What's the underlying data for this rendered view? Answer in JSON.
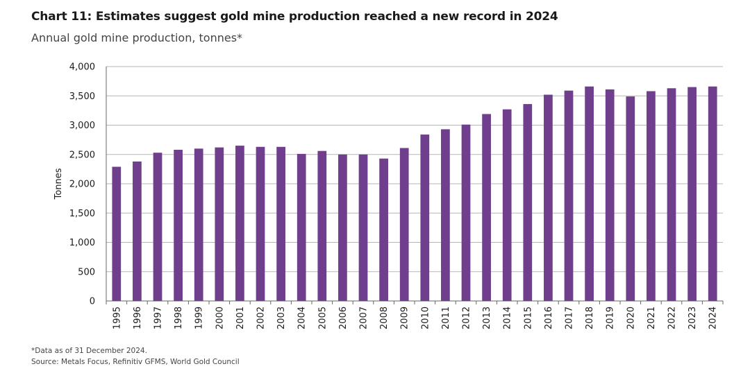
{
  "header": {
    "title": "Chart 11: Estimates suggest gold mine production reached a new record in 2024",
    "subtitle": "Annual gold mine production, tonnes*"
  },
  "footer": {
    "note": "*Data as of 31 December 2024.",
    "source": "Source: Metals Focus, Refinitiv GFMS, World Gold Council"
  },
  "chart_data": {
    "type": "bar",
    "ylabel": "Tonnes",
    "ylim": [
      0,
      4000
    ],
    "yticks": [
      0,
      500,
      1000,
      1500,
      2000,
      2500,
      3000,
      3500,
      4000
    ],
    "ytick_labels": [
      "0",
      "500",
      "1,000",
      "1,500",
      "2,000",
      "2,500",
      "3,000",
      "3,500",
      "4,000"
    ],
    "grid": true,
    "bar_color": "#6f3f8e",
    "categories": [
      "1995",
      "1996",
      "1997",
      "1998",
      "1999",
      "2000",
      "2001",
      "2002",
      "2003",
      "2004",
      "2005",
      "2006",
      "2007",
      "2008",
      "2009",
      "2010",
      "2011",
      "2012",
      "2013",
      "2014",
      "2015",
      "2016",
      "2017",
      "2018",
      "2019",
      "2020",
      "2021",
      "2022",
      "2023",
      "2024"
    ],
    "values": [
      2290,
      2380,
      2530,
      2580,
      2600,
      2620,
      2650,
      2630,
      2630,
      2510,
      2560,
      2500,
      2500,
      2430,
      2610,
      2840,
      2930,
      3010,
      3190,
      3270,
      3360,
      3520,
      3590,
      3660,
      3610,
      3490,
      3580,
      3630,
      3650,
      3660
    ]
  }
}
